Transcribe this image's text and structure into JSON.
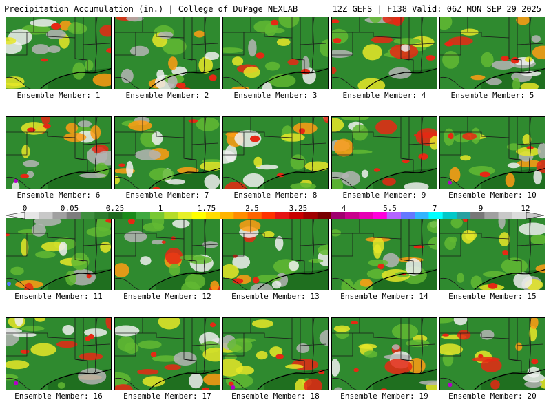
{
  "header": {
    "title_left": "Precipitation Accumulation (in.) | College of DuPage NEXLAB",
    "title_right": "12Z GEFS | F138 Valid: 06Z MON SEP 29 2025"
  },
  "members": [
    {
      "caption": "Ensemble Member: 1"
    },
    {
      "caption": "Ensemble Member: 2"
    },
    {
      "caption": "Ensemble Member: 3"
    },
    {
      "caption": "Ensemble Member: 4"
    },
    {
      "caption": "Ensemble Member: 5"
    },
    {
      "caption": "Ensemble Member: 6"
    },
    {
      "caption": "Ensemble Member: 7"
    },
    {
      "caption": "Ensemble Member: 8"
    },
    {
      "caption": "Ensemble Member: 9"
    },
    {
      "caption": "Ensemble Member: 10"
    },
    {
      "caption": "Ensemble Member: 11"
    },
    {
      "caption": "Ensemble Member: 12"
    },
    {
      "caption": "Ensemble Member: 13"
    },
    {
      "caption": "Ensemble Member: 14"
    },
    {
      "caption": "Ensemble Member: 15"
    },
    {
      "caption": "Ensemble Member: 16"
    },
    {
      "caption": "Ensemble Member: 17"
    },
    {
      "caption": "Ensemble Member: 18"
    },
    {
      "caption": "Ensemble Member: 19"
    },
    {
      "caption": "Ensemble Member: 20"
    }
  ],
  "colorbar": {
    "labels": [
      "0",
      "0.05",
      "0.25",
      "1",
      "1.75",
      "2.5",
      "3.25",
      "4",
      "5.5",
      "7",
      "9",
      "12"
    ],
    "colors": [
      "#e6e6e6",
      "#c8c8c8",
      "#a0a0a0",
      "#7d7d7d",
      "#3f8f3f",
      "#2e7d2e",
      "#1f6a1f",
      "#1a8a1a",
      "#3fa83f",
      "#78c832",
      "#b4dc28",
      "#e6f028",
      "#ffff00",
      "#ffdc00",
      "#ffb400",
      "#ff8c00",
      "#ff6400",
      "#ff3200",
      "#e61414",
      "#c80000",
      "#a00000",
      "#780000",
      "#a0006e",
      "#c8008c",
      "#e600b4",
      "#ff00dc",
      "#b464ff",
      "#6478ff",
      "#32b4ff",
      "#00ffff",
      "#00c8c8",
      "#28a0a0",
      "#787878",
      "#a0a0a0",
      "#c8c8c8",
      "#dcdcdc"
    ]
  },
  "map_colors": {
    "ocean": "#1f6f1f",
    "land_base": "#2f8a2f",
    "light": "#62b832",
    "yellow": "#e6e628",
    "orange": "#ff9c14",
    "red": "#e62814",
    "gray": "#b4b4b4",
    "white": "#eeeeee",
    "magenta": "#b400c8",
    "blue": "#5078ff"
  }
}
